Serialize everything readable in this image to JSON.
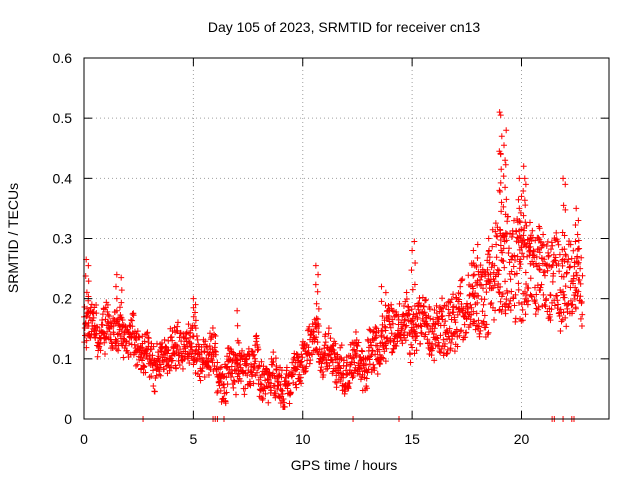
{
  "chart_data": {
    "type": "scatter",
    "title": "Day 105 of 2023, SRMTID for receiver cn13",
    "xlabel": "GPS time / hours",
    "ylabel": "SRMTID / TECUs",
    "xlim": [
      0,
      24
    ],
    "ylim": [
      0,
      0.6
    ],
    "xticks": [
      0,
      5,
      10,
      15,
      20
    ],
    "xtick_labels": [
      "0",
      "5",
      "10",
      "15",
      "20"
    ],
    "yticks": [
      0,
      0.1,
      0.2,
      0.3,
      0.4,
      0.5,
      0.6
    ],
    "ytick_labels": [
      "0",
      "0.1",
      "0.2",
      "0.3",
      "0.4",
      "0.5",
      "0.6"
    ],
    "grid": true,
    "marker": "+",
    "color": "#ff0000",
    "series": [
      {
        "name": "SRMTID",
        "trend": [
          [
            0.0,
            0.16
          ],
          [
            0.5,
            0.14
          ],
          [
            1.0,
            0.15
          ],
          [
            1.5,
            0.16
          ],
          [
            2.0,
            0.14
          ],
          [
            2.5,
            0.12
          ],
          [
            3.0,
            0.1
          ],
          [
            3.5,
            0.1
          ],
          [
            4.0,
            0.11
          ],
          [
            4.5,
            0.12
          ],
          [
            5.0,
            0.14
          ],
          [
            5.5,
            0.13
          ],
          [
            6.0,
            0.1
          ],
          [
            6.5,
            0.08
          ],
          [
            7.0,
            0.08
          ],
          [
            7.5,
            0.09
          ],
          [
            8.0,
            0.07
          ],
          [
            8.5,
            0.06
          ],
          [
            9.0,
            0.06
          ],
          [
            9.5,
            0.07
          ],
          [
            10.0,
            0.1
          ],
          [
            10.5,
            0.13
          ],
          [
            11.0,
            0.12
          ],
          [
            11.5,
            0.1
          ],
          [
            12.0,
            0.1
          ],
          [
            12.5,
            0.11
          ],
          [
            13.0,
            0.11
          ],
          [
            13.5,
            0.12
          ],
          [
            14.0,
            0.13
          ],
          [
            14.5,
            0.14
          ],
          [
            15.0,
            0.15
          ],
          [
            15.5,
            0.16
          ],
          [
            16.0,
            0.16
          ],
          [
            16.5,
            0.17
          ],
          [
            17.0,
            0.18
          ],
          [
            17.5,
            0.19
          ],
          [
            18.0,
            0.2
          ],
          [
            18.5,
            0.22
          ],
          [
            19.0,
            0.25
          ],
          [
            19.5,
            0.25
          ],
          [
            20.0,
            0.26
          ],
          [
            20.5,
            0.24
          ],
          [
            21.0,
            0.23
          ],
          [
            21.5,
            0.22
          ],
          [
            22.0,
            0.22
          ],
          [
            22.5,
            0.24
          ],
          [
            22.8,
            0.23
          ]
        ],
        "spread": [
          [
            0.0,
            0.03
          ],
          [
            5.0,
            0.035
          ],
          [
            10.0,
            0.03
          ],
          [
            15.0,
            0.04
          ],
          [
            17.5,
            0.05
          ],
          [
            19.0,
            0.08
          ],
          [
            22.8,
            0.06
          ]
        ],
        "peaks": [
          [
            0.1,
            0.265
          ],
          [
            0.2,
            0.255
          ],
          [
            1.5,
            0.24
          ],
          [
            1.7,
            0.235
          ],
          [
            5.0,
            0.2
          ],
          [
            5.1,
            0.19
          ],
          [
            7.0,
            0.18
          ],
          [
            10.6,
            0.255
          ],
          [
            10.7,
            0.24
          ],
          [
            13.6,
            0.22
          ],
          [
            13.8,
            0.21
          ],
          [
            15.1,
            0.295
          ],
          [
            15.0,
            0.28
          ],
          [
            17.8,
            0.28
          ],
          [
            18.0,
            0.29
          ],
          [
            18.5,
            0.3
          ],
          [
            19.0,
            0.51
          ],
          [
            19.05,
            0.505
          ],
          [
            19.1,
            0.47
          ],
          [
            19.2,
            0.455
          ],
          [
            19.25,
            0.43
          ],
          [
            19.05,
            0.44
          ],
          [
            19.3,
            0.48
          ],
          [
            19.9,
            0.4
          ],
          [
            20.1,
            0.42
          ],
          [
            20.15,
            0.4
          ],
          [
            20.2,
            0.39
          ],
          [
            19.9,
            0.35
          ],
          [
            20.0,
            0.37
          ],
          [
            20.4,
            0.3
          ],
          [
            20.8,
            0.32
          ],
          [
            21.9,
            0.4
          ],
          [
            22.0,
            0.39
          ],
          [
            22.5,
            0.35
          ],
          [
            22.6,
            0.33
          ]
        ],
        "zeros": [
          2.7,
          5.9,
          6.0,
          6.1,
          6.4,
          12.3,
          14.4,
          21.4,
          21.5,
          21.9,
          22.3,
          22.4
        ]
      }
    ]
  }
}
